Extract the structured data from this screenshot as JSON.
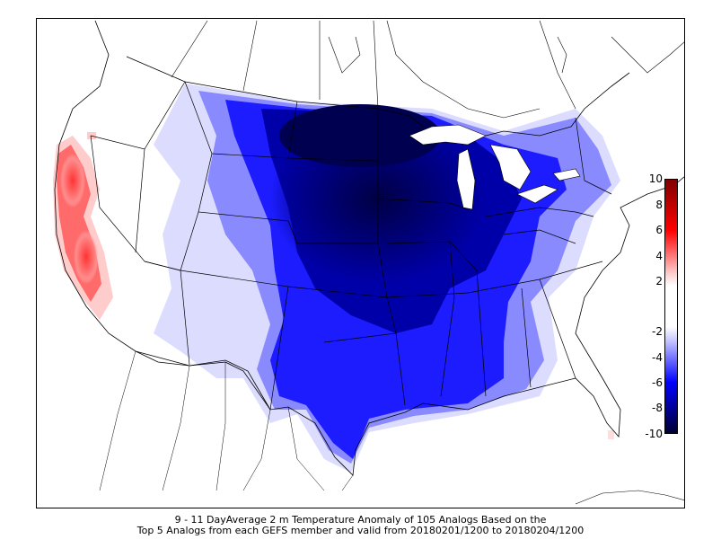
{
  "caption": {
    "line1": "9 - 11 DayAverage 2 m Temperature Anomaly of 105 Analogs Based on the",
    "line2": "Top 5 Analogs from each GEFS member and valid from 20180201/1200 to 20180204/1200"
  },
  "colorbar": {
    "ticks": [
      "10",
      "8",
      "6",
      "4",
      "2",
      "-2",
      "-4",
      "-6",
      "-8",
      "-10"
    ],
    "colors": [
      "#000033",
      "#0000ff",
      "#ccccff",
      "#ffffff",
      "#ffcccc",
      "#ff0000",
      "#800000"
    ]
  },
  "map": {
    "projection": "Lambert conformal",
    "region": "Contiguous United States",
    "field": "2 m temperature anomaly"
  }
}
